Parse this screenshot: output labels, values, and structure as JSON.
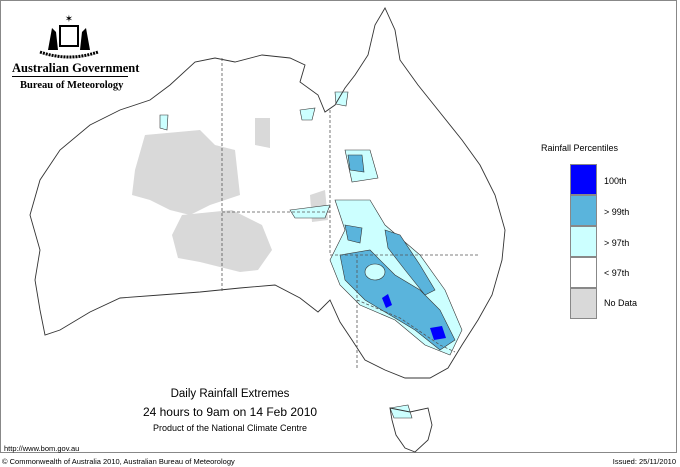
{
  "header": {
    "org": "Australian Government",
    "agency": "Bureau of Meteorology"
  },
  "legend": {
    "title": "Rainfall Percentiles",
    "items": [
      {
        "label": "100th",
        "color": "#0000ff"
      },
      {
        "label": "> 99th",
        "color": "#5ab4dc"
      },
      {
        "label": "> 97th",
        "color": "#ccffff"
      },
      {
        "label": "< 97th",
        "color": "#ffffff"
      },
      {
        "label": "No Data",
        "color": "#d9d9d9"
      }
    ]
  },
  "title": {
    "line1": "Daily Rainfall Extremes",
    "line2": "24 hours to 9am on 14 Feb 2010",
    "line3": "Product of the National Climate Centre"
  },
  "footer": {
    "url": "http://www.bom.gov.au",
    "copyright": "© Commonwealth of Australia 2010, Australian Bureau of Meteorology",
    "issued": "Issued: 25/11/2010"
  }
}
